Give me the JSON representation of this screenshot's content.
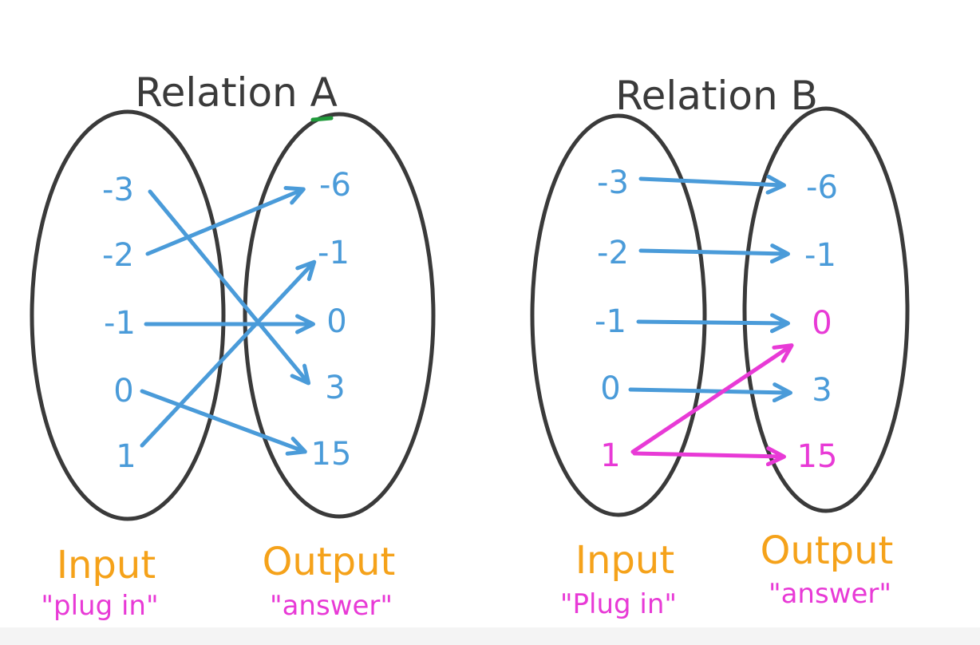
{
  "colors": {
    "outline": "#3a3a3a",
    "mapping_blue": "#4a9bd9",
    "mapping_pink": "#e83ad6",
    "caption_orange": "#f5a21a"
  },
  "relation_a": {
    "title": "Relation A",
    "inputs": [
      "-3",
      "-2",
      "-1",
      "0",
      "1"
    ],
    "outputs": [
      "-6",
      "-1",
      "0",
      "3",
      "15"
    ],
    "mappings": [
      {
        "from": "-3",
        "to": "3"
      },
      {
        "from": "-2",
        "to": "-6"
      },
      {
        "from": "-1",
        "to": "0"
      },
      {
        "from": "0",
        "to": "15"
      },
      {
        "from": "1",
        "to": "-1"
      }
    ],
    "input_caption": "Input",
    "input_subcaption": "\"plug in\"",
    "output_caption": "Output",
    "output_subcaption": "\"answer\""
  },
  "relation_b": {
    "title": "Relation B",
    "inputs": [
      "-3",
      "-2",
      "-1",
      "0",
      "1"
    ],
    "outputs": [
      "-6",
      "-1",
      "0",
      "3",
      "15"
    ],
    "mappings": [
      {
        "from": "-3",
        "to": "-6",
        "color": "blue"
      },
      {
        "from": "-2",
        "to": "-1",
        "color": "blue"
      },
      {
        "from": "-1",
        "to": "0",
        "color": "blue"
      },
      {
        "from": "0",
        "to": "3",
        "color": "blue"
      },
      {
        "from": "1",
        "to": "0",
        "color": "pink"
      },
      {
        "from": "1",
        "to": "15",
        "color": "pink"
      }
    ],
    "highlighted_input": "1",
    "highlighted_outputs": [
      "0",
      "15"
    ],
    "input_caption": "Input",
    "input_subcaption": "\"Plug in\"",
    "output_caption": "Output",
    "output_subcaption": "\"answer\""
  }
}
